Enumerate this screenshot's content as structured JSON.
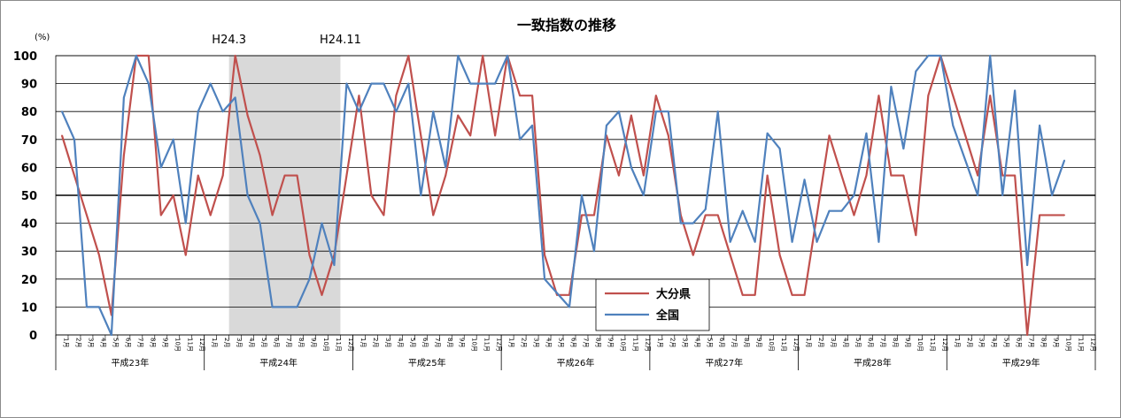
{
  "chart_data": {
    "type": "line",
    "title": "一致指数の推移",
    "unit": "(%)",
    "ylim": [
      0,
      100
    ],
    "yticks": [
      0,
      10,
      20,
      30,
      40,
      50,
      60,
      70,
      80,
      90,
      100
    ],
    "grid": true,
    "legend_position": "bottom-center",
    "month_labels": [
      "1月",
      "2月",
      "3月",
      "4月",
      "5月",
      "6月",
      "7月",
      "8月",
      "9月",
      "10月",
      "11月",
      "12月"
    ],
    "years": [
      "平成23年",
      "平成24年",
      "平成25年",
      "平成26年",
      "平成27年",
      "平成28年",
      "平成29年"
    ],
    "shaded_region": {
      "from_index": 14,
      "to_index": 22,
      "start_label": "H24.3",
      "end_label": "H24.11"
    },
    "reference_line": 50,
    "colors": {
      "oita": "#c0504d",
      "national": "#4f81bd",
      "shade": "#d9d9d9"
    },
    "series": [
      {
        "name": "大分県",
        "values": [
          71.4,
          57.1,
          42.9,
          28.6,
          7.1,
          64.3,
          100,
          100,
          42.9,
          50,
          28.6,
          57.1,
          42.9,
          57.1,
          100,
          78.6,
          64.3,
          42.9,
          57.1,
          57.1,
          28.6,
          14.3,
          28.6,
          57.1,
          85.7,
          50,
          42.9,
          85.7,
          100,
          71.4,
          42.9,
          57.1,
          78.6,
          71.4,
          100,
          71.4,
          100,
          85.7,
          85.7,
          28.6,
          14.3,
          14.3,
          42.9,
          42.9,
          71.4,
          57.1,
          78.6,
          57.1,
          85.7,
          71.4,
          42.9,
          28.6,
          42.9,
          42.9,
          28.6,
          14.3,
          14.3,
          57.1,
          28.6,
          14.3,
          14.3,
          42.9,
          71.4,
          57.1,
          42.9,
          57.1,
          85.7,
          57.1,
          57.1,
          35.7,
          85.7,
          100,
          85.7,
          71.4,
          57.1,
          85.7,
          57.1,
          57.1,
          0,
          42.9,
          42.9,
          42.9
        ]
      },
      {
        "name": "全国",
        "values": [
          80,
          70,
          10,
          10,
          0,
          85,
          100,
          90,
          60,
          70,
          40,
          80,
          90,
          80,
          85,
          50,
          40,
          10,
          10,
          10,
          20,
          40,
          25,
          90,
          80,
          90,
          90,
          80,
          90,
          50,
          80,
          60,
          100,
          90,
          90,
          90,
          100,
          70,
          75,
          20,
          15,
          10,
          50,
          30,
          75,
          80,
          60,
          50,
          80,
          80,
          40,
          40,
          45,
          80,
          33.3,
          44.4,
          33.3,
          72.2,
          66.7,
          33.3,
          55.6,
          33.3,
          44.4,
          44.4,
          50,
          72.2,
          33.3,
          88.9,
          66.7,
          94.4,
          100,
          100,
          75,
          62.5,
          50,
          100,
          50,
          87.5,
          25,
          75,
          50,
          62.5
        ]
      }
    ]
  }
}
